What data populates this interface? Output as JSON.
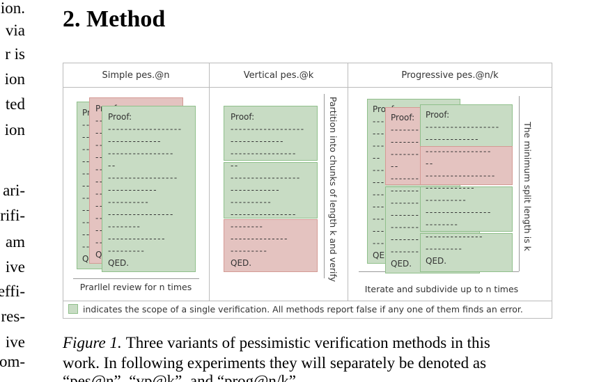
{
  "left_fragments": [
    "ion.",
    "via",
    "r is",
    "ion",
    "ted",
    "ion",
    "ari-",
    "rifi-",
    "am",
    "ive",
    "effi-",
    "res-",
    "ive",
    "om-"
  ],
  "heading": "2. Method",
  "figure": {
    "columns": [
      {
        "title": "Simple pes.@n",
        "note": "Prarllel review for n times"
      },
      {
        "title": "Vertical pes.@k",
        "side_note": "Partition into chunks of length k and verify"
      },
      {
        "title": "Progressive pes.@n/k",
        "note": "Iterate and subdivide up to n times",
        "side_note": "The minimum split length is k"
      }
    ],
    "proof_lines": [
      "Proof:",
      "------------------",
      "-------------",
      "----------------",
      "--",
      "-----------------",
      "------------",
      "----------",
      "----------------",
      "--------",
      "--------------",
      "---------",
      "QED."
    ],
    "legend": "indicates the scope of a single verification. All methods report false if any one of them finds an error."
  },
  "caption": {
    "label": "Figure 1.",
    "lines": [
      "Three variants of pessimistic verification methods in this",
      "work. In following experiments they will separately be denoted as",
      "“pes@n”, “vp@k”, and “prog@n/k”."
    ]
  }
}
